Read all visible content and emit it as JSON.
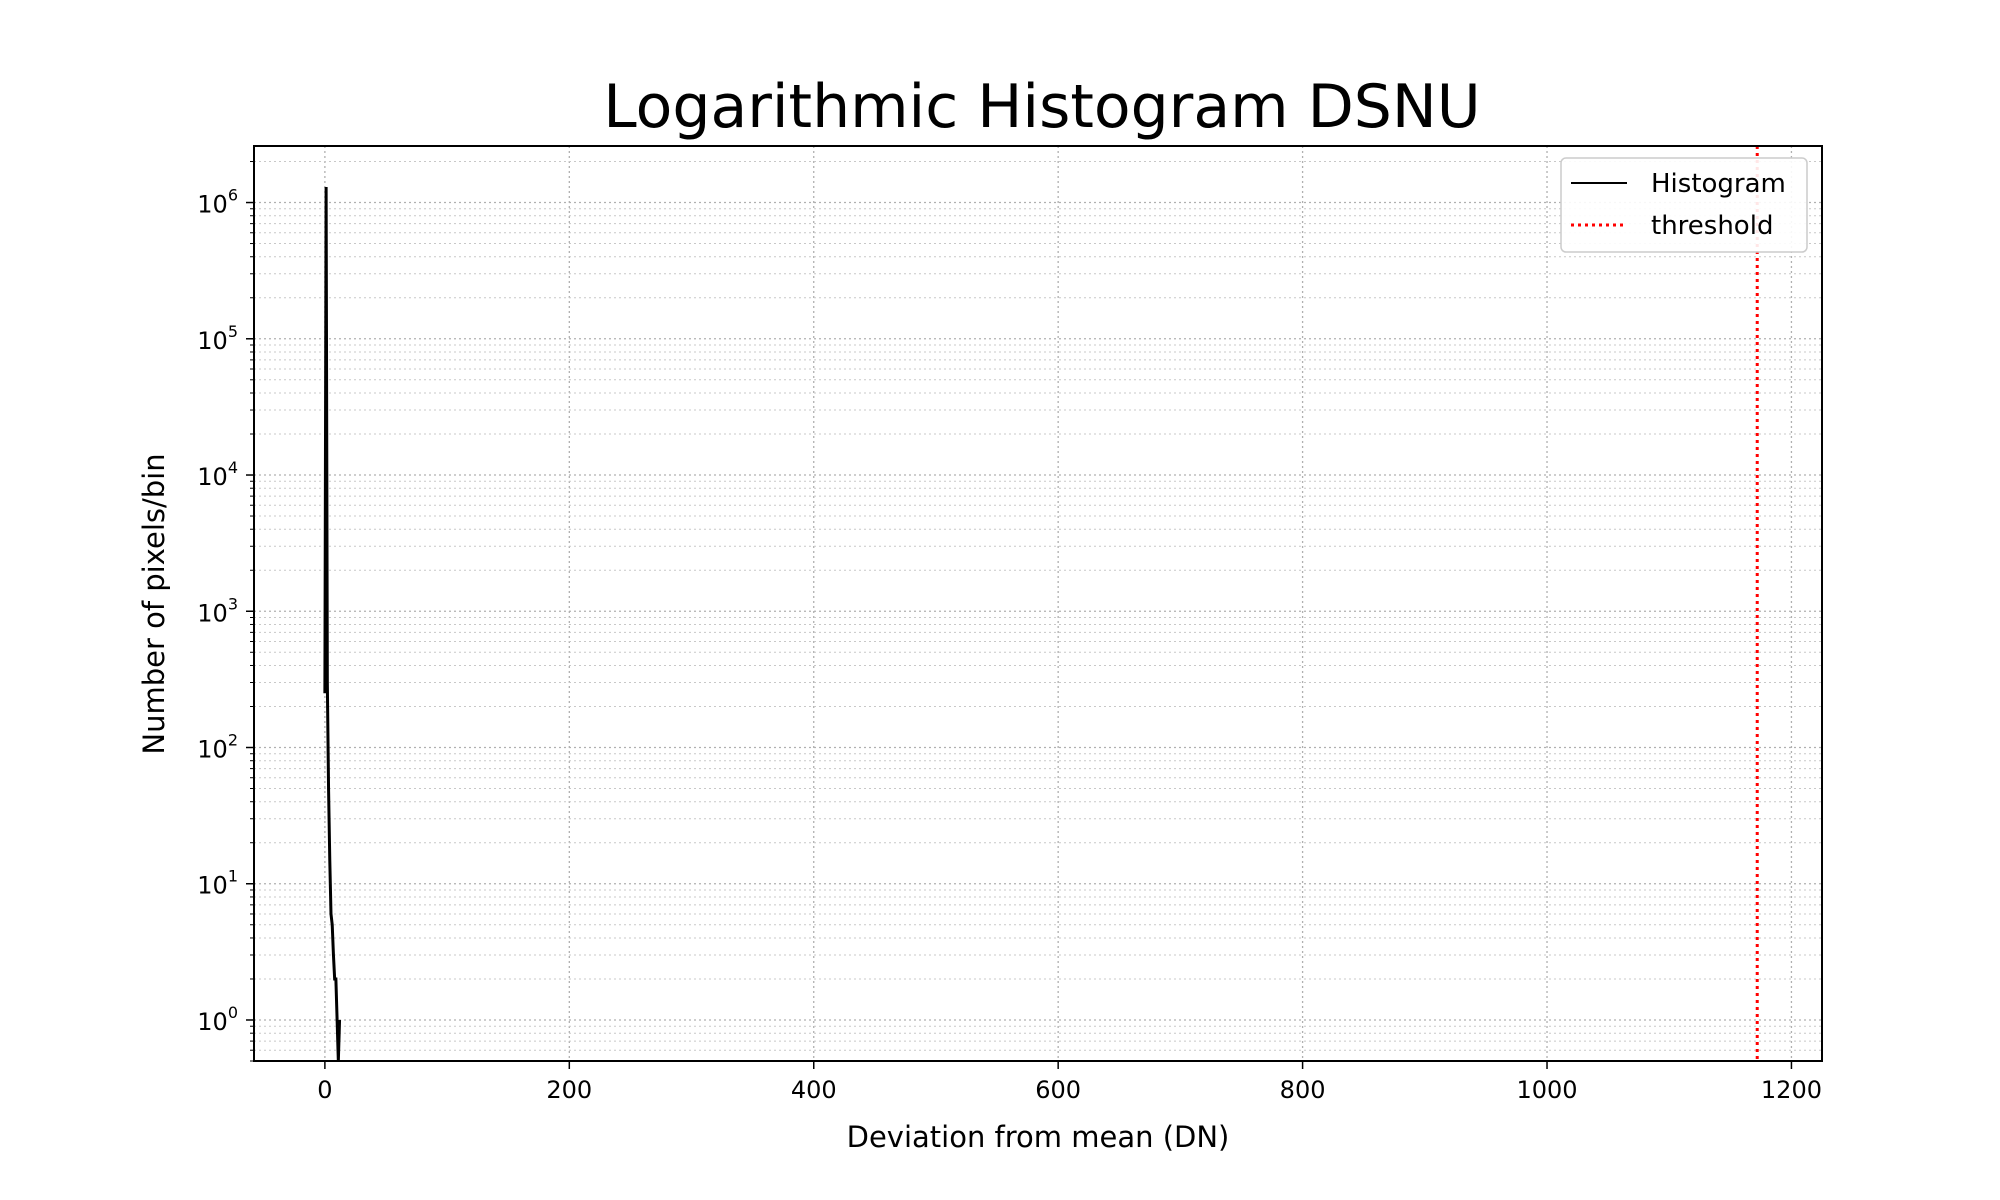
{
  "chart_data": {
    "type": "line",
    "title": "Logarithmic Histogram DSNU",
    "xlabel": "Deviation from mean (DN)",
    "ylabel": "Number of pixels/bin",
    "xlim": [
      -58,
      1225
    ],
    "ylim": [
      0.5,
      2600000
    ],
    "yscale": "log",
    "grid": true,
    "x_ticks": [
      0,
      200,
      400,
      600,
      800,
      1000,
      1200
    ],
    "x_tick_labels": [
      "0",
      "200",
      "400",
      "600",
      "800",
      "1000",
      "1200"
    ],
    "y_ticks": [
      1,
      10,
      100,
      1000,
      10000,
      100000,
      1000000
    ],
    "y_tick_labels": [
      {
        "base": "10",
        "exp": "0"
      },
      {
        "base": "10",
        "exp": "1"
      },
      {
        "base": "10",
        "exp": "2"
      },
      {
        "base": "10",
        "exp": "3"
      },
      {
        "base": "10",
        "exp": "4"
      },
      {
        "base": "10",
        "exp": "5"
      },
      {
        "base": "10",
        "exp": "6"
      }
    ],
    "legend": {
      "placement": "top-right",
      "entries": [
        {
          "label": "Histogram",
          "color": "#000000",
          "style": "solid"
        },
        {
          "label": "threshold",
          "color": "#ff0000",
          "style": "dotted"
        }
      ]
    },
    "series": [
      {
        "name": "Histogram",
        "color": "#000000",
        "x": [
          0,
          1,
          2,
          3,
          4,
          5,
          6,
          7,
          8,
          9,
          10,
          11,
          12
        ],
        "y": [
          250,
          1300000,
          300,
          50,
          15,
          6,
          5,
          3,
          2,
          2,
          1,
          0,
          1
        ]
      },
      {
        "name": "threshold",
        "color": "#ff0000",
        "vline_x": 1172
      }
    ]
  }
}
